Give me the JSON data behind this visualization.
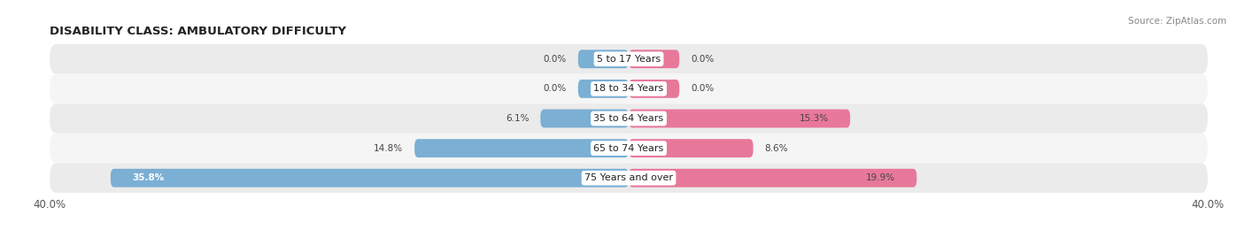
{
  "title": "DISABILITY CLASS: AMBULATORY DIFFICULTY",
  "source": "Source: ZipAtlas.com",
  "categories": [
    "5 to 17 Years",
    "18 to 34 Years",
    "35 to 64 Years",
    "65 to 74 Years",
    "75 Years and over"
  ],
  "male_values": [
    0.0,
    0.0,
    6.1,
    14.8,
    35.8
  ],
  "female_values": [
    0.0,
    0.0,
    15.3,
    8.6,
    19.9
  ],
  "x_max": 40.0,
  "male_color": "#7bafd4",
  "female_color": "#e8789a",
  "row_bg_even": "#ebebeb",
  "row_bg_odd": "#f5f5f5",
  "label_color": "#444444",
  "title_color": "#222222",
  "axis_label_color": "#555555",
  "bar_height": 0.62,
  "min_bar_width": 3.5,
  "figsize": [
    14.06,
    2.68
  ],
  "dpi": 100
}
